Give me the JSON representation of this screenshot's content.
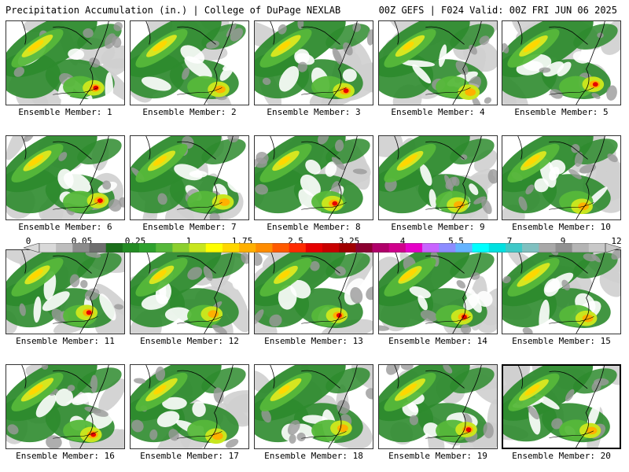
{
  "header": {
    "title": "Precipitation Accumulation (in.) | College of DuPage NEXLAB",
    "run_info": "00Z GEFS | F024 Valid: 00Z FRI JUN 06 2025"
  },
  "members": [
    {
      "label": "Ensemble Member: 1"
    },
    {
      "label": "Ensemble Member: 2"
    },
    {
      "label": "Ensemble Member: 3"
    },
    {
      "label": "Ensemble Member: 4"
    },
    {
      "label": "Ensemble Member: 5"
    },
    {
      "label": "Ensemble Member: 6"
    },
    {
      "label": "Ensemble Member: 7"
    },
    {
      "label": "Ensemble Member: 8"
    },
    {
      "label": "Ensemble Member: 9"
    },
    {
      "label": "Ensemble Member: 10"
    },
    {
      "label": "Ensemble Member: 11"
    },
    {
      "label": "Ensemble Member: 12"
    },
    {
      "label": "Ensemble Member: 13"
    },
    {
      "label": "Ensemble Member: 14"
    },
    {
      "label": "Ensemble Member: 15"
    },
    {
      "label": "Ensemble Member: 16"
    },
    {
      "label": "Ensemble Member: 17"
    },
    {
      "label": "Ensemble Member: 18"
    },
    {
      "label": "Ensemble Member: 19"
    },
    {
      "label": "Ensemble Member: 20"
    }
  ],
  "colorbar": {
    "tick_labels": [
      "0",
      "0.05",
      "0.25",
      "1",
      "1.75",
      "2.5",
      "3.25",
      "4",
      "5.5",
      "7",
      "9",
      "12"
    ],
    "colors": [
      "#d9d9d9",
      "#bdbdbd",
      "#8c8c8c",
      "#6e6e6e",
      "#1a6e1a",
      "#238b23",
      "#2ea12e",
      "#56b83a",
      "#8ccf2e",
      "#c8e61e",
      "#ffff00",
      "#ffd700",
      "#ffb000",
      "#ff8c00",
      "#ff5a00",
      "#ff2a00",
      "#e60000",
      "#c80000",
      "#a00000",
      "#8b0030",
      "#b0006a",
      "#d0008c",
      "#e600c8",
      "#c864ff",
      "#8c8cff",
      "#64b4ff",
      "#00ffff",
      "#00e0e0",
      "#40c8c8",
      "#80c0c0",
      "#a8a8a8",
      "#909090",
      "#b4b4b4",
      "#c8c8c8"
    ]
  },
  "selected_member": 20
}
